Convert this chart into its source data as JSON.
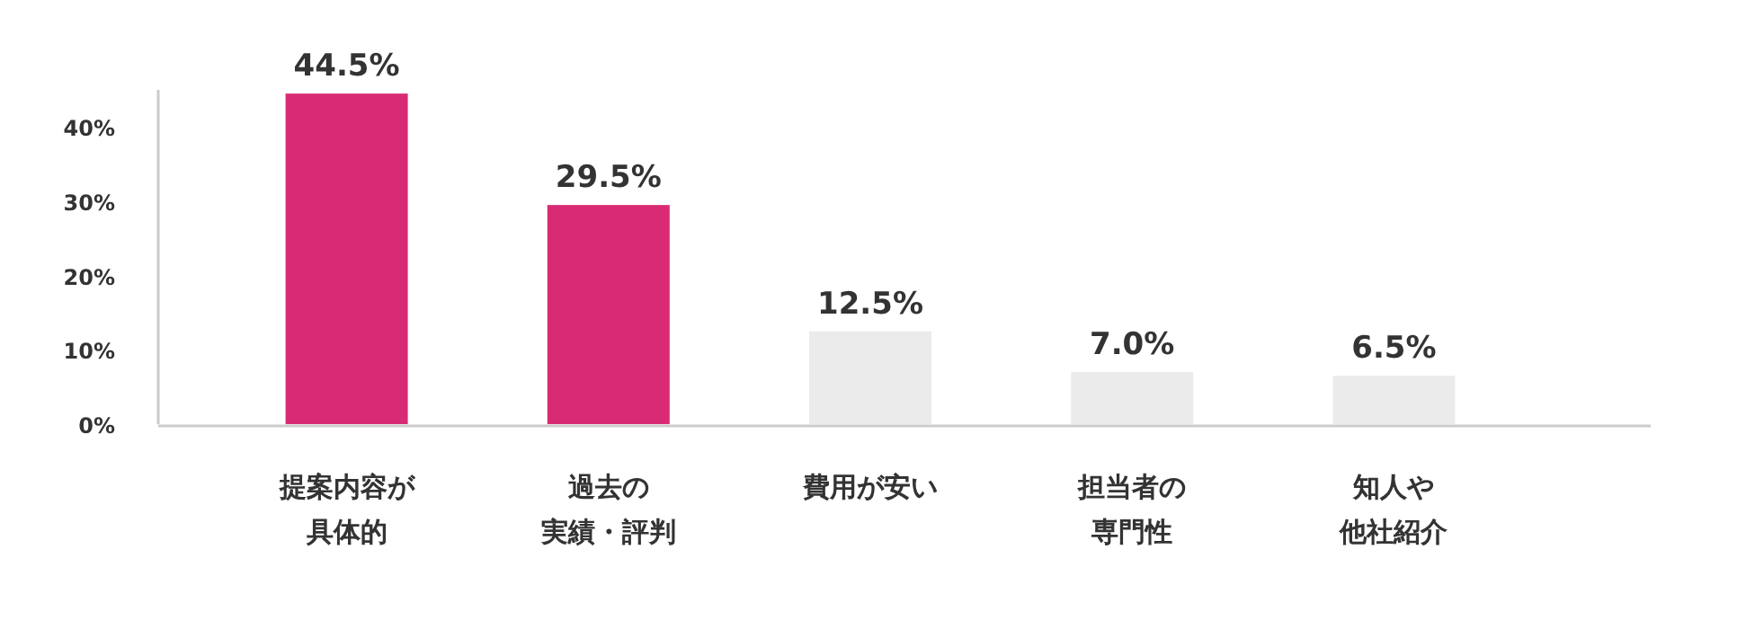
{
  "chart_data": {
    "type": "bar",
    "categories": [
      "提案内容が具体的",
      "過去の実績・評判",
      "費用が安い",
      "担当者の専門性",
      "知人や他社紹介"
    ],
    "values": [
      44.5,
      29.5,
      12.5,
      7.0,
      6.5
    ],
    "colors": [
      "#d92b74",
      "#d92b74",
      "#ebebeb",
      "#ebebeb",
      "#ebebeb"
    ],
    "value_labels": [
      "44.5%",
      "29.5%",
      "12.5%",
      "7.0%",
      "6.5%"
    ],
    "ylim": [
      0,
      45
    ],
    "yticks": [
      {
        "value": 0,
        "label": "0%"
      },
      {
        "value": 10,
        "label": "10%"
      },
      {
        "value": 20,
        "label": "20%"
      },
      {
        "value": 30,
        "label": "30%"
      },
      {
        "value": 40,
        "label": "40%"
      }
    ],
    "grid": false
  }
}
